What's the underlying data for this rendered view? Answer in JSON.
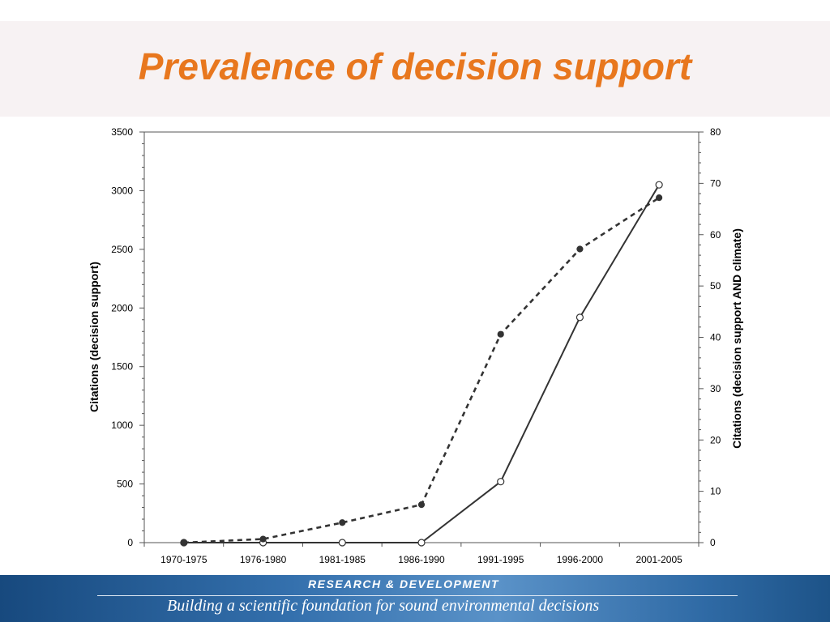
{
  "slide": {
    "title": "Prevalence of decision support"
  },
  "footer": {
    "top_text": "RESEARCH & DEVELOPMENT",
    "tagline": "Building a scientific foundation for sound environmental decisions"
  },
  "chart_data": {
    "type": "line",
    "categories": [
      "1970-1975",
      "1976-1980",
      "1981-1985",
      "1986-1990",
      "1991-1995",
      "1996-2000",
      "2001-2005"
    ],
    "ylabel": "Citations (decision support)",
    "ylabel_right": "Citations (decision support AND climate)",
    "ylim": [
      0,
      3500
    ],
    "yticks": [
      "0",
      "500",
      "1000",
      "1500",
      "2000",
      "2500",
      "3000",
      "3500"
    ],
    "ylim_right": [
      0,
      80
    ],
    "yticks_right": [
      "0",
      "10",
      "20",
      "30",
      "40",
      "50",
      "60",
      "70",
      "80"
    ],
    "grid": false,
    "legend": "none",
    "series": [
      {
        "axis": "left",
        "style": "solid line, open circle markers",
        "color": "#333333",
        "values": [
          0,
          0,
          0,
          0,
          520,
          1920,
          3050
        ]
      },
      {
        "axis": "right",
        "style": "dashed line, filled circle markers",
        "color": "#333333",
        "values": [
          0,
          0.7,
          3.9,
          7.4,
          40.6,
          57.2,
          67.2
        ]
      }
    ]
  }
}
